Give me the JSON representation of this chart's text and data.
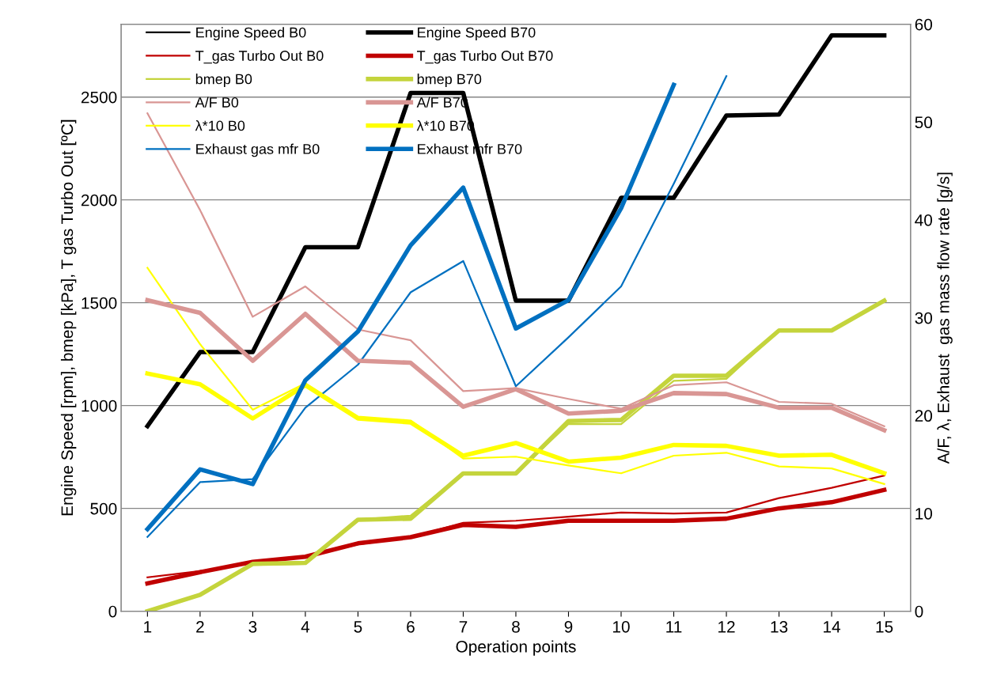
{
  "chart_data": {
    "type": "line",
    "xlabel": "Operation points",
    "ylabel": "Engine Speed [rpm], bmep [kPa], T gas Turbo Out [ºC]",
    "y2label": "A/F, λ, Exhaust  gas mass flow rate [g/s]",
    "x": [
      1,
      2,
      3,
      4,
      5,
      6,
      7,
      8,
      9,
      10,
      11,
      12,
      13,
      14,
      15
    ],
    "xlim": [
      0.5,
      15.5
    ],
    "xticks": [
      1,
      2,
      3,
      4,
      5,
      6,
      7,
      8,
      9,
      10,
      11,
      12,
      13,
      14,
      15
    ],
    "ylim": [
      0,
      2854
    ],
    "yticks": [
      0,
      500,
      1000,
      1500,
      2000,
      2500
    ],
    "y2lim": [
      0,
      60
    ],
    "y2ticks": [
      0,
      10,
      20,
      30,
      40,
      50,
      60
    ],
    "grid": "y",
    "legend": "top left",
    "marker": "none",
    "line_style": "solid",
    "series": [
      {
        "name": "Engine Speed B0",
        "color": "#000000",
        "values": [
          null,
          null,
          null,
          null,
          null,
          null,
          null,
          null,
          null,
          null,
          null,
          null,
          null,
          null,
          null
        ]
      },
      {
        "name": "Engine Speed B70",
        "color": "#000000",
        "values": [
          900,
          1260,
          1260,
          1770,
          1770,
          2520,
          2520,
          1510,
          1510,
          2010,
          2010,
          2410,
          2415,
          2800,
          2800
        ]
      },
      {
        "name": "T_gas Turbo Out B0",
        "color": "#c00000",
        "values": [
          165,
          195,
          235,
          265,
          325,
          360,
          430,
          440,
          460,
          480,
          475,
          480,
          550,
          600,
          660
        ]
      },
      {
        "name": "T_gas Turbo Out B70",
        "color": "#c00000",
        "values": [
          135,
          190,
          240,
          265,
          330,
          360,
          420,
          410,
          440,
          440,
          440,
          450,
          500,
          530,
          590
        ]
      },
      {
        "name": "bmep B0",
        "color": "#c4d43c",
        "values": [
          0,
          80,
          225,
          230,
          445,
          465,
          670,
          670,
          910,
          910,
          1120,
          1130,
          1365,
          1365,
          1510
        ]
      },
      {
        "name": "bmep B70",
        "color": "#c4d43c",
        "values": [
          0,
          80,
          230,
          235,
          445,
          450,
          670,
          670,
          925,
          930,
          1145,
          1145,
          1365,
          1365,
          1510
        ]
      },
      {
        "name": "A/F B0",
        "color": "#d99694",
        "axis": "y2",
        "values": [
          50.9,
          41,
          30.1,
          33.2,
          28.8,
          27.7,
          22.5,
          22.8,
          21.7,
          20.7,
          23.1,
          23.4,
          21.4,
          21.2,
          18.9
        ]
      },
      {
        "name": "A/F B70",
        "color": "#d99694",
        "axis": "y2",
        "values": [
          31.8,
          30.5,
          25.6,
          30.4,
          25.6,
          25.4,
          20.9,
          22.7,
          20.2,
          20.5,
          22.3,
          22.2,
          20.8,
          20.8,
          18.5
        ]
      },
      {
        "name": "λ*10 B0",
        "color": "#ffff00",
        "axis": "y2",
        "values": [
          35.1,
          27.3,
          20.6,
          23.3,
          19.9,
          19.5,
          15.6,
          15.8,
          14.9,
          14.1,
          15.9,
          16.2,
          14.8,
          14.6,
          13.0
        ]
      },
      {
        "name": "λ*10 B70",
        "color": "#ffff00",
        "axis": "y2",
        "values": [
          24.3,
          23.2,
          19.7,
          23.1,
          19.7,
          19.3,
          15.9,
          17.2,
          15.3,
          15.7,
          17.0,
          16.9,
          15.9,
          16.0,
          14.1
        ]
      },
      {
        "name": "Exhaust gas mfr B0",
        "color": "#0070c0",
        "axis": "y2",
        "values": [
          7.6,
          13.2,
          13.5,
          20.8,
          25.2,
          32.6,
          35.8,
          23.0,
          28.0,
          33.2,
          43.7,
          54.7,
          null,
          null,
          null
        ]
      },
      {
        "name": "Exhaust mfr B70",
        "color": "#0070c0",
        "axis": "y2",
        "values": [
          8.4,
          14.5,
          13.0,
          23.6,
          28.6,
          37.4,
          43.3,
          28.9,
          31.8,
          41.2,
          53.8,
          null,
          null,
          null,
          null
        ]
      }
    ]
  }
}
